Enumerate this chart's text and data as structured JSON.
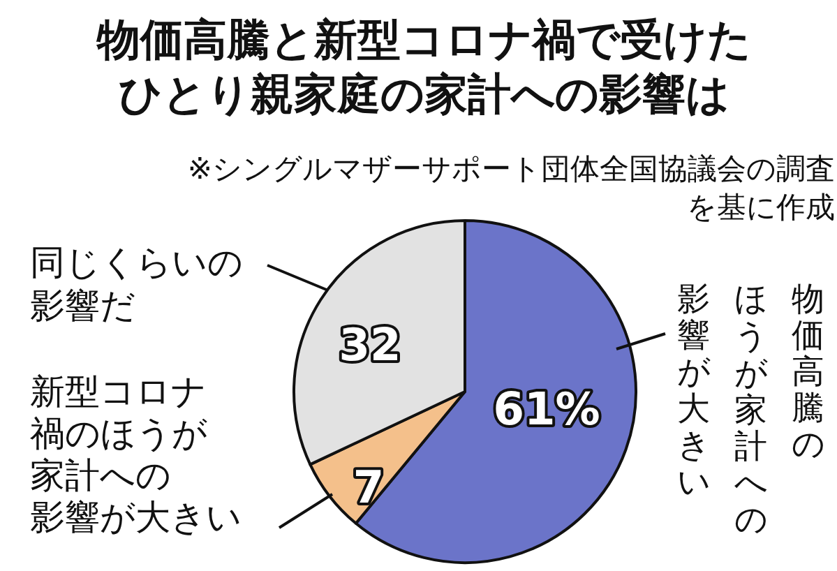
{
  "chart_data": {
    "type": "pie",
    "title": "物価高騰と新型コロナ禍で受けたひとり親家庭の家計への影響は",
    "subtitle": "※シングルマザーサポート団体全国協議会の調査を基に作成",
    "categories": [
      "物価高騰のほうが家計への影響が大きい",
      "新型コロナ禍のほうが家計への影響が大きい",
      "同じくらいの影響だ"
    ],
    "values": [
      61,
      7,
      32
    ],
    "colors": [
      "#6b74c9",
      "#f4c08b",
      "#e2e2e2"
    ],
    "value_labels": [
      "61%",
      "7",
      "32"
    ],
    "legend": false
  }
}
